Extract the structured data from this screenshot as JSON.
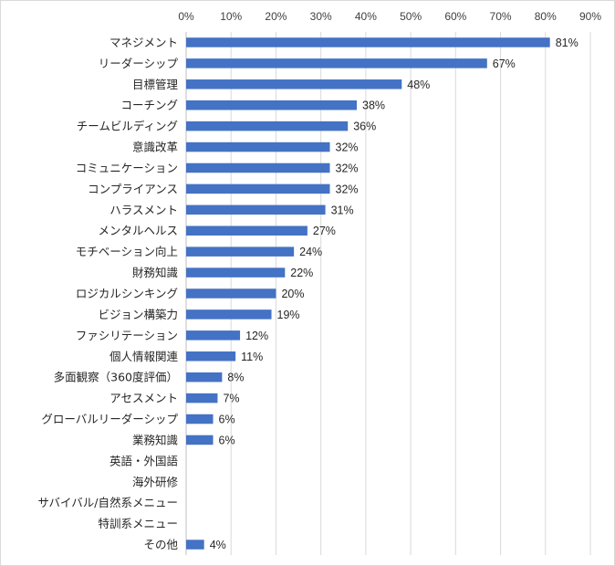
{
  "chart_data": {
    "type": "bar",
    "orientation": "horizontal",
    "title": "",
    "xlabel": "",
    "ylabel": "",
    "xlim": [
      0,
      90
    ],
    "x_ticks": [
      "0%",
      "10%",
      "20%",
      "30%",
      "40%",
      "50%",
      "60%",
      "70%",
      "80%",
      "90%"
    ],
    "axis_position": "top",
    "grid": true,
    "legend": "none",
    "bar_color": "#4472c4",
    "categories": [
      "マネジメント",
      "リーダーシップ",
      "目標管理",
      "コーチング",
      "チームビルディング",
      "意識改革",
      "コミュニケーション",
      "コンプライアンス",
      "ハラスメント",
      "メンタルヘルス",
      "モチベーション向上",
      "財務知識",
      "ロジカルシンキング",
      "ビジョン構築力",
      "ファシリテーション",
      "個人情報関連",
      "多面観察（360度評価）",
      "アセスメント",
      "グローバルリーダーシップ",
      "業務知識",
      "英語・外国語",
      "海外研修",
      "サバイバル/自然系メニュー",
      "特訓系メニュー",
      "その他"
    ],
    "values": [
      81,
      67,
      48,
      38,
      36,
      32,
      32,
      32,
      31,
      27,
      24,
      22,
      20,
      19,
      12,
      11,
      8,
      7,
      6,
      6,
      null,
      null,
      null,
      null,
      4
    ],
    "data_labels": [
      "81%",
      "67%",
      "48%",
      "38%",
      "36%",
      "32%",
      "32%",
      "32%",
      "31%",
      "27%",
      "24%",
      "22%",
      "20%",
      "19%",
      "12%",
      "11%",
      "8%",
      "7%",
      "6%",
      "6%",
      "",
      "",
      "",
      "",
      "4%"
    ]
  }
}
